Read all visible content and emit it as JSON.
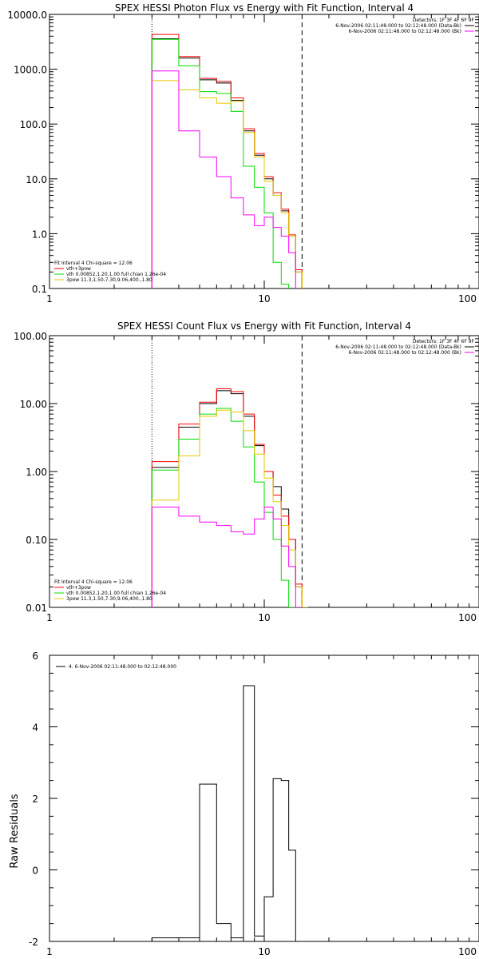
{
  "chart_data": [
    {
      "type": "line",
      "title": "SPEX HESSI Photon Flux vs Energy with Fit Function, Interval 4",
      "xlabel": "",
      "ylabel": "",
      "xscale": "log",
      "yscale": "log",
      "xlim": [
        1,
        100
      ],
      "ylim": [
        0.1,
        10000
      ],
      "xticks": [
        "1",
        "10",
        "100"
      ],
      "yticks": [
        "0.1",
        "1.0",
        "10.0",
        "100.0",
        "1000.0",
        "10000.0"
      ],
      "legend_top_right": {
        "header": "Detectors: 1F 3F 4F 6F 9F",
        "entries": [
          {
            "label": "6-Nov-2006 02:11:48.000 to 02:12:48.000 (Data-Bk)",
            "color": "#000000"
          },
          {
            "label": "6-Nov-2006 02:11:48.000 to 02:12:48.000 (Bk)",
            "color": "#ff00ff"
          }
        ]
      },
      "legend_bottom_left": {
        "header": "Fit Interval 4   Chi-square = 12.06",
        "entries": [
          {
            "label": "vth+3pow",
            "color": "#ff0000"
          },
          {
            "label": "vth 0.00852,1.20,1.00  full chian 1.26e-04",
            "color": "#00dd00"
          },
          {
            "label": "3pow 11.3,1.50,7.30,9.06,400.,1.80",
            "color": "#e6c800"
          }
        ]
      },
      "vlines": [
        {
          "x": 3.0,
          "style": "dotted",
          "color": "#000000"
        },
        {
          "x": 15.0,
          "style": "dashed",
          "color": "#000000"
        }
      ],
      "bin_edges": [
        3,
        4,
        5,
        6,
        7,
        8,
        9,
        10,
        11,
        12,
        13,
        14,
        15,
        16,
        17
      ],
      "series": [
        {
          "color": "#000000",
          "values": [
            3600,
            1600,
            640,
            560,
            270,
            75,
            27,
            10,
            5.0,
            2.6,
            0.9,
            0.2,
            null,
            null
          ]
        },
        {
          "color": "#ff0000",
          "values": [
            4300,
            1700,
            680,
            600,
            300,
            82,
            29,
            11,
            5.6,
            2.8,
            0.95,
            0.22,
            null,
            null
          ]
        },
        {
          "color": "#00dd00",
          "values": [
            3500,
            1150,
            390,
            360,
            170,
            17,
            7,
            2.4,
            0.3,
            0.12,
            null,
            null,
            null,
            null
          ]
        },
        {
          "color": "#e6c800",
          "values": [
            620,
            420,
            300,
            240,
            260,
            70,
            25,
            9,
            5.0,
            2.4,
            0.9,
            0.2,
            null,
            null
          ]
        },
        {
          "color": "#ff00ff",
          "values": [
            930,
            75,
            25,
            11,
            4.5,
            2.2,
            1.4,
            2.0,
            1.3,
            0.9,
            0.45,
            null,
            null,
            null
          ]
        }
      ]
    },
    {
      "type": "line",
      "title": "SPEX HESSI Count Flux vs Energy with Fit Function, Interval 4",
      "xlabel": "",
      "ylabel": "",
      "xscale": "log",
      "yscale": "log",
      "xlim": [
        1,
        100
      ],
      "ylim": [
        0.01,
        100
      ],
      "xticks": [
        "1",
        "10",
        "100"
      ],
      "yticks": [
        "0.01",
        "0.10",
        "1.00",
        "10.00",
        "100.00"
      ],
      "legend_top_right": {
        "header": "Detectors: 1F 3F 4F 6F 9F",
        "entries": [
          {
            "label": "6-Nov-2006 02:11:48.000 to 02:12:48.000 (Data-Bk)",
            "color": "#000000"
          },
          {
            "label": "6-Nov-2006 02:11:48.000 to 02:12:48.000 (Bk)",
            "color": "#ff00ff"
          }
        ]
      },
      "legend_bottom_left": {
        "header": "Fit Interval 4   Chi-square = 12.06",
        "entries": [
          {
            "label": "vth+3pow",
            "color": "#ff0000"
          },
          {
            "label": "vth 0.00852,1.20,1.00  full chian 1.26e-04",
            "color": "#00dd00"
          },
          {
            "label": "3pow 11.3,1.50,7.30,9.06,400.,1.80",
            "color": "#e6c800"
          }
        ]
      },
      "vlines": [
        {
          "x": 3.0,
          "style": "dotted",
          "color": "#000000"
        },
        {
          "x": 15.0,
          "style": "dashed",
          "color": "#000000"
        }
      ],
      "bin_edges": [
        3,
        4,
        5,
        6,
        7,
        8,
        9,
        10,
        11,
        12,
        13,
        14,
        15,
        16,
        17
      ],
      "series": [
        {
          "color": "#000000",
          "values": [
            1.15,
            4.5,
            10.0,
            15.5,
            14.0,
            6.5,
            2.4,
            1.0,
            0.6,
            0.28,
            0.1,
            0.02,
            0.01,
            null
          ]
        },
        {
          "color": "#ff0000",
          "values": [
            1.4,
            5.0,
            10.5,
            16.5,
            15.0,
            7.0,
            2.5,
            1.0,
            0.45,
            0.22,
            0.1,
            0.022,
            0.01,
            null
          ]
        },
        {
          "color": "#00dd00",
          "values": [
            1.05,
            3.0,
            7.0,
            8.5,
            5.5,
            2.3,
            0.7,
            0.25,
            0.1,
            0.025,
            0.01,
            null,
            null,
            null
          ]
        },
        {
          "color": "#e6c800",
          "values": [
            0.38,
            1.7,
            6.5,
            8.0,
            7.5,
            4.0,
            1.8,
            0.8,
            0.36,
            0.16,
            0.07,
            0.02,
            0.01,
            null
          ]
        },
        {
          "color": "#ff00ff",
          "values": [
            0.3,
            0.22,
            0.18,
            0.16,
            0.13,
            0.12,
            0.2,
            0.3,
            0.2,
            0.08,
            0.04,
            0.01,
            null,
            null
          ]
        }
      ]
    },
    {
      "type": "line",
      "title": "",
      "xlabel": "",
      "ylabel": "Raw Residuals",
      "xscale": "log",
      "yscale": "linear",
      "xlim": [
        1,
        100
      ],
      "ylim": [
        -2,
        6
      ],
      "xticks": [
        "1",
        "10",
        "100"
      ],
      "yticks": [
        "-2",
        "0",
        "2",
        "4",
        "6"
      ],
      "legend_top_left": {
        "entries": [
          {
            "label": "4.  6-Nov-2006 02:11:48.000 to 02:12:48.000",
            "color": "#000000"
          }
        ]
      },
      "bin_edges": [
        3,
        4,
        5,
        6,
        7,
        8,
        9,
        10,
        11,
        12,
        13,
        14,
        15
      ],
      "series": [
        {
          "color": "#000000",
          "values": [
            -1.9,
            -1.9,
            2.4,
            -1.5,
            -1.9,
            5.15,
            -1.85,
            -0.75,
            2.55,
            2.5,
            0.55,
            null
          ]
        }
      ]
    }
  ]
}
